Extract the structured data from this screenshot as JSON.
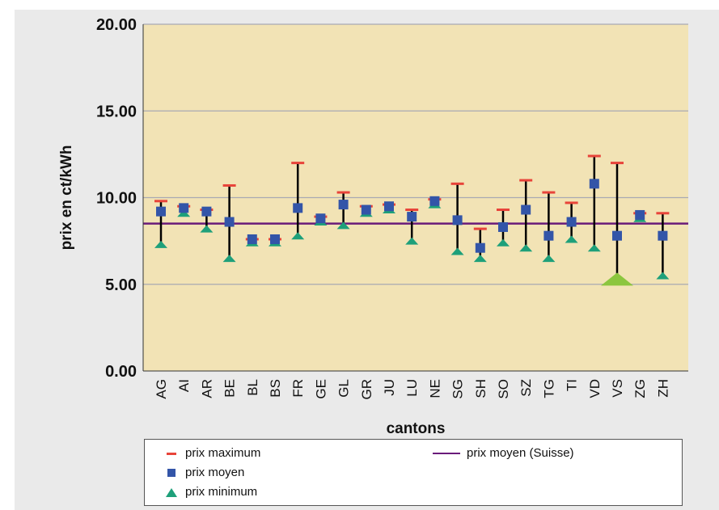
{
  "chart_data": {
    "type": "scatter",
    "ylabel": "prix en ct/kWh",
    "xlabel": "cantons",
    "ylim": [
      0,
      20
    ],
    "yticks": [
      "0.00",
      "5.00",
      "10.00",
      "15.00",
      "20.00"
    ],
    "grid": "horizontal",
    "categories": [
      "AG",
      "AI",
      "AR",
      "BE",
      "BL",
      "BS",
      "FR",
      "GE",
      "GL",
      "GR",
      "JU",
      "LU",
      "NE",
      "SG",
      "SH",
      "SO",
      "SZ",
      "TG",
      "TI",
      "VD",
      "VS",
      "ZG",
      "ZH"
    ],
    "series": [
      {
        "name": "prix maximum",
        "values": [
          9.8,
          9.5,
          9.3,
          10.7,
          7.6,
          7.6,
          12.0,
          8.9,
          10.3,
          9.5,
          9.6,
          9.3,
          9.9,
          10.8,
          8.2,
          9.3,
          11.0,
          10.3,
          9.7,
          12.4,
          12.0,
          9.1,
          9.1
        ]
      },
      {
        "name": "prix moyen",
        "values": [
          9.2,
          9.4,
          9.2,
          8.6,
          7.6,
          7.6,
          9.4,
          8.8,
          9.6,
          9.3,
          9.5,
          8.9,
          9.8,
          8.7,
          7.1,
          8.3,
          9.3,
          7.8,
          8.6,
          10.8,
          7.8,
          9.0,
          7.8
        ]
      },
      {
        "name": "prix minimum",
        "values": [
          7.3,
          9.1,
          8.2,
          6.5,
          7.4,
          7.4,
          7.8,
          8.6,
          8.4,
          9.1,
          9.3,
          7.5,
          9.6,
          6.9,
          6.5,
          7.4,
          7.1,
          6.5,
          7.6,
          7.1,
          5.3,
          8.8,
          5.5
        ]
      },
      {
        "name": "prix moyen (Suisse)",
        "value": 8.5
      }
    ],
    "legend_position": "bottom",
    "colors": {
      "plot_bg": "#f2e3b5",
      "max": "#e8443a",
      "mean": "#3355a8",
      "min": "#1ea07a",
      "min_highlight": "#8cc63f",
      "avg_line": "#6a1b7a",
      "range_line": "#000000",
      "grid": "#a9a9b3"
    }
  },
  "legend": {
    "max_label": "prix maximum",
    "mean_label": "prix moyen",
    "min_label": "prix minimum",
    "avg_label": "prix moyen (Suisse)"
  }
}
